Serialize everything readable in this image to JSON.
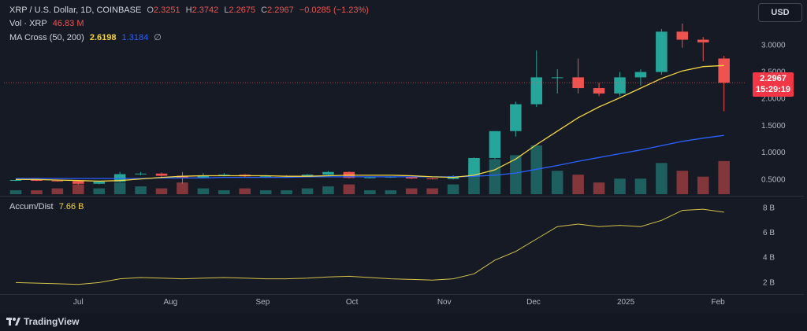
{
  "legend": {
    "symbol": "XRP / U.S. Dollar, 1D, COINBASE",
    "o_label": "O",
    "o_value": "2.3251",
    "h_label": "H",
    "h_value": "2.3742",
    "l_label": "L",
    "l_value": "2.2675",
    "c_label": "C",
    "c_value": "2.2967",
    "change": "−0.0285 (−1.23%)",
    "vol_label": "Vol · XRP",
    "vol_value": "46.83 M",
    "ma_label": "MA Cross (50, 200)",
    "ma50_value": "2.6198",
    "ma200_value": "1.3184",
    "ma_extra": "∅",
    "ad_label": "Accum/Dist",
    "ad_value": "7.66 B"
  },
  "currency_button": "USD",
  "price_tag": {
    "price": "2.2967",
    "countdown": "15:29:19"
  },
  "brand": "TradingView",
  "colors": {
    "up": "#26a69a",
    "down": "#ef5350",
    "ma50": "#f2d544",
    "ma200": "#2962ff",
    "ad": "#d4c24a"
  },
  "chart_data": [
    {
      "type": "candlestick",
      "title": "XRP / U.S. Dollar, 1D, COINBASE",
      "x_tick_labels": [
        "Jul",
        "Aug",
        "Sep",
        "Oct",
        "Nov",
        "Dec",
        "2025",
        "Feb"
      ],
      "y_tick_labels": [
        "0.5000",
        "1.0000",
        "1.5000",
        "2.0000",
        "2.5000",
        "3.0000"
      ],
      "ylim": [
        0.3,
        3.4
      ],
      "x_range": [
        "2024-06-10",
        "2025-02-06"
      ],
      "ohlc_weekly_approx": [
        {
          "date": "2024-06-10",
          "o": 0.49,
          "h": 0.5,
          "l": 0.47,
          "c": 0.49
        },
        {
          "date": "2024-06-17",
          "o": 0.49,
          "h": 0.5,
          "l": 0.47,
          "c": 0.48
        },
        {
          "date": "2024-06-24",
          "o": 0.48,
          "h": 0.49,
          "l": 0.46,
          "c": 0.47
        },
        {
          "date": "2024-07-01",
          "o": 0.47,
          "h": 0.48,
          "l": 0.4,
          "c": 0.42
        },
        {
          "date": "2024-07-08",
          "o": 0.42,
          "h": 0.47,
          "l": 0.41,
          "c": 0.46
        },
        {
          "date": "2024-07-15",
          "o": 0.46,
          "h": 0.64,
          "l": 0.45,
          "c": 0.6
        },
        {
          "date": "2024-07-22",
          "o": 0.6,
          "h": 0.64,
          "l": 0.58,
          "c": 0.61
        },
        {
          "date": "2024-07-29",
          "o": 0.61,
          "h": 0.63,
          "l": 0.55,
          "c": 0.57
        },
        {
          "date": "2024-08-05",
          "o": 0.57,
          "h": 0.64,
          "l": 0.42,
          "c": 0.53
        },
        {
          "date": "2024-08-12",
          "o": 0.53,
          "h": 0.62,
          "l": 0.53,
          "c": 0.57
        },
        {
          "date": "2024-08-19",
          "o": 0.57,
          "h": 0.62,
          "l": 0.56,
          "c": 0.59
        },
        {
          "date": "2024-08-26",
          "o": 0.59,
          "h": 0.6,
          "l": 0.54,
          "c": 0.56
        },
        {
          "date": "2024-09-02",
          "o": 0.56,
          "h": 0.58,
          "l": 0.53,
          "c": 0.56
        },
        {
          "date": "2024-09-09",
          "o": 0.56,
          "h": 0.58,
          "l": 0.55,
          "c": 0.57
        },
        {
          "date": "2024-09-16",
          "o": 0.57,
          "h": 0.6,
          "l": 0.56,
          "c": 0.59
        },
        {
          "date": "2024-09-23",
          "o": 0.59,
          "h": 0.66,
          "l": 0.58,
          "c": 0.64
        },
        {
          "date": "2024-09-30",
          "o": 0.64,
          "h": 0.65,
          "l": 0.52,
          "c": 0.53
        },
        {
          "date": "2024-10-07",
          "o": 0.53,
          "h": 0.55,
          "l": 0.52,
          "c": 0.54
        },
        {
          "date": "2024-10-14",
          "o": 0.54,
          "h": 0.56,
          "l": 0.53,
          "c": 0.55
        },
        {
          "date": "2024-10-21",
          "o": 0.55,
          "h": 0.56,
          "l": 0.51,
          "c": 0.52
        },
        {
          "date": "2024-10-28",
          "o": 0.52,
          "h": 0.53,
          "l": 0.5,
          "c": 0.51
        },
        {
          "date": "2024-11-04",
          "o": 0.51,
          "h": 0.58,
          "l": 0.5,
          "c": 0.56
        },
        {
          "date": "2024-11-11",
          "o": 0.56,
          "h": 0.91,
          "l": 0.55,
          "c": 0.9
        },
        {
          "date": "2024-11-18",
          "o": 0.9,
          "h": 1.4,
          "l": 0.88,
          "c": 1.4
        },
        {
          "date": "2024-11-25",
          "o": 1.4,
          "h": 1.95,
          "l": 1.3,
          "c": 1.9
        },
        {
          "date": "2024-12-02",
          "o": 1.9,
          "h": 2.9,
          "l": 1.85,
          "c": 2.4
        },
        {
          "date": "2024-12-09",
          "o": 2.4,
          "h": 2.55,
          "l": 2.1,
          "c": 2.4
        },
        {
          "date": "2024-12-16",
          "o": 2.4,
          "h": 2.75,
          "l": 2.1,
          "c": 2.2
        },
        {
          "date": "2024-12-23",
          "o": 2.2,
          "h": 2.3,
          "l": 2.05,
          "c": 2.1
        },
        {
          "date": "2024-12-30",
          "o": 2.1,
          "h": 2.5,
          "l": 2.05,
          "c": 2.4
        },
        {
          "date": "2025-01-06",
          "o": 2.4,
          "h": 2.55,
          "l": 2.25,
          "c": 2.5
        },
        {
          "date": "2025-01-13",
          "o": 2.5,
          "h": 3.3,
          "l": 2.45,
          "c": 3.25
        },
        {
          "date": "2025-01-20",
          "o": 3.25,
          "h": 3.4,
          "l": 2.95,
          "c": 3.1
        },
        {
          "date": "2025-01-27",
          "o": 3.1,
          "h": 3.15,
          "l": 2.7,
          "c": 3.05
        },
        {
          "date": "2025-02-03",
          "o": 2.75,
          "h": 2.8,
          "l": 1.77,
          "c": 2.3
        }
      ]
    },
    {
      "type": "bar",
      "title": "Vol · XRP",
      "series": [
        {
          "name": "Vol · XRP",
          "values": [
            0.2,
            0.2,
            0.3,
            0.5,
            0.3,
            0.6,
            0.4,
            0.3,
            0.6,
            0.3,
            0.2,
            0.3,
            0.2,
            0.2,
            0.3,
            0.4,
            0.5,
            0.2,
            0.2,
            0.3,
            0.3,
            0.5,
            1.5,
            1.8,
            2.0,
            2.5,
            1.2,
            1.0,
            0.6,
            0.8,
            0.8,
            1.6,
            1.2,
            0.9,
            1.7
          ]
        }
      ]
    },
    {
      "type": "line",
      "title": "MA Cross (50, 200)",
      "series": [
        {
          "name": "MA 50",
          "values": [
            0.5,
            0.5,
            0.49,
            0.48,
            0.47,
            0.48,
            0.51,
            0.54,
            0.56,
            0.57,
            0.57,
            0.57,
            0.57,
            0.56,
            0.56,
            0.57,
            0.58,
            0.58,
            0.58,
            0.57,
            0.55,
            0.54,
            0.58,
            0.68,
            0.88,
            1.15,
            1.4,
            1.65,
            1.85,
            2.02,
            2.2,
            2.38,
            2.52,
            2.6,
            2.62
          ]
        },
        {
          "name": "MA 200",
          "values": [
            0.52,
            0.52,
            0.52,
            0.52,
            0.52,
            0.52,
            0.52,
            0.53,
            0.53,
            0.53,
            0.54,
            0.54,
            0.54,
            0.54,
            0.55,
            0.55,
            0.55,
            0.55,
            0.55,
            0.55,
            0.55,
            0.55,
            0.56,
            0.58,
            0.62,
            0.69,
            0.76,
            0.84,
            0.91,
            0.98,
            1.05,
            1.13,
            1.21,
            1.27,
            1.32
          ]
        }
      ]
    },
    {
      "type": "line",
      "title": "Accum/Dist",
      "y_tick_labels": [
        "2 B",
        "4 B",
        "6 B",
        "8 B"
      ],
      "ylim": [
        1.2,
        8.6
      ],
      "series": [
        {
          "name": "Accum/Dist",
          "values": [
            2.0,
            1.95,
            1.9,
            1.85,
            2.0,
            2.3,
            2.4,
            2.35,
            2.3,
            2.35,
            2.4,
            2.35,
            2.3,
            2.3,
            2.35,
            2.45,
            2.5,
            2.4,
            2.3,
            2.25,
            2.2,
            2.3,
            2.7,
            3.8,
            4.5,
            5.5,
            6.5,
            6.7,
            6.5,
            6.6,
            6.5,
            7.0,
            7.8,
            7.9,
            7.66
          ]
        }
      ]
    }
  ]
}
